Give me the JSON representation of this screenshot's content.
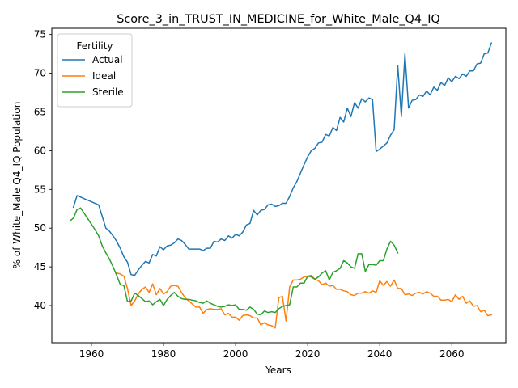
{
  "chart_data": {
    "type": "line",
    "title": "Score_3_in_TRUST_IN_MEDICINE_for_White_Male_Q4_IQ",
    "xlabel": "Years",
    "ylabel": "% of White_Male Q4_IQ Population",
    "xlim": [
      1949,
      2075
    ],
    "ylim": [
      35.2,
      75.8
    ],
    "xticks": [
      1960,
      1980,
      2000,
      2020,
      2040,
      2060
    ],
    "yticks": [
      40,
      45,
      50,
      55,
      60,
      65,
      70,
      75
    ],
    "grid": false,
    "legend": {
      "title": "Fertility",
      "placement": "top-left"
    },
    "series": [
      {
        "name": "Actual",
        "color": "#1f77b4",
        "points": [
          [
            1955,
            52.7
          ],
          [
            1956,
            54.2
          ],
          [
            1957,
            54.0
          ],
          [
            1958,
            53.8
          ],
          [
            1959,
            53.6
          ],
          [
            1960,
            53.4
          ],
          [
            1961,
            53.2
          ],
          [
            1962,
            53.0
          ],
          [
            1963,
            51.5
          ],
          [
            1964,
            50.0
          ],
          [
            1965,
            49.6
          ],
          [
            1966,
            49.0
          ],
          [
            1967,
            48.3
          ],
          [
            1968,
            47.4
          ],
          [
            1969,
            46.3
          ],
          [
            1970,
            45.6
          ],
          [
            1971,
            44.0
          ],
          [
            1972,
            43.9
          ],
          [
            1973,
            44.6
          ],
          [
            1974,
            45.2
          ],
          [
            1975,
            45.7
          ],
          [
            1976,
            45.5
          ],
          [
            1977,
            46.6
          ],
          [
            1978,
            46.4
          ],
          [
            1979,
            47.6
          ],
          [
            1980,
            47.2
          ],
          [
            1981,
            47.7
          ],
          [
            1982,
            47.8
          ],
          [
            1983,
            48.1
          ],
          [
            1984,
            48.6
          ],
          [
            1985,
            48.4
          ],
          [
            1986,
            47.9
          ],
          [
            1987,
            47.3
          ],
          [
            1988,
            47.3
          ],
          [
            1989,
            47.3
          ],
          [
            1990,
            47.3
          ],
          [
            1991,
            47.1
          ],
          [
            1992,
            47.4
          ],
          [
            1993,
            47.4
          ],
          [
            1994,
            48.3
          ],
          [
            1995,
            48.2
          ],
          [
            1996,
            48.6
          ],
          [
            1997,
            48.4
          ],
          [
            1998,
            49.0
          ],
          [
            1999,
            48.7
          ],
          [
            2000,
            49.2
          ],
          [
            2001,
            49.0
          ],
          [
            2002,
            49.5
          ],
          [
            2003,
            50.4
          ],
          [
            2004,
            50.6
          ],
          [
            2005,
            52.3
          ],
          [
            2006,
            51.7
          ],
          [
            2007,
            52.3
          ],
          [
            2008,
            52.4
          ],
          [
            2009,
            53.0
          ],
          [
            2010,
            53.1
          ],
          [
            2011,
            52.8
          ],
          [
            2012,
            52.9
          ],
          [
            2013,
            53.2
          ],
          [
            2014,
            53.2
          ],
          [
            2015,
            54.1
          ],
          [
            2016,
            55.2
          ],
          [
            2017,
            56.0
          ],
          [
            2018,
            57.1
          ],
          [
            2019,
            58.2
          ],
          [
            2020,
            59.2
          ],
          [
            2021,
            60.0
          ],
          [
            2022,
            60.3
          ],
          [
            2023,
            61.0
          ],
          [
            2024,
            61.1
          ],
          [
            2025,
            62.1
          ],
          [
            2026,
            61.9
          ],
          [
            2027,
            63.0
          ],
          [
            2028,
            62.6
          ],
          [
            2029,
            64.3
          ],
          [
            2030,
            63.7
          ],
          [
            2031,
            65.5
          ],
          [
            2032,
            64.4
          ],
          [
            2033,
            66.2
          ],
          [
            2034,
            65.5
          ],
          [
            2035,
            66.7
          ],
          [
            2036,
            66.3
          ],
          [
            2037,
            66.8
          ],
          [
            2038,
            66.6
          ],
          [
            2039,
            59.9
          ],
          [
            2040,
            60.2
          ],
          [
            2041,
            60.6
          ],
          [
            2042,
            61.0
          ],
          [
            2043,
            62.0
          ],
          [
            2044,
            62.7
          ],
          [
            2045,
            71.0
          ],
          [
            2046,
            64.4
          ],
          [
            2047,
            72.5
          ],
          [
            2048,
            65.5
          ],
          [
            2049,
            66.5
          ],
          [
            2050,
            66.6
          ],
          [
            2051,
            67.2
          ],
          [
            2052,
            67.0
          ],
          [
            2053,
            67.7
          ],
          [
            2054,
            67.2
          ],
          [
            2055,
            68.2
          ],
          [
            2056,
            67.8
          ],
          [
            2057,
            68.8
          ],
          [
            2058,
            68.4
          ],
          [
            2059,
            69.4
          ],
          [
            2060,
            68.9
          ],
          [
            2061,
            69.6
          ],
          [
            2062,
            69.3
          ],
          [
            2063,
            69.9
          ],
          [
            2064,
            69.6
          ],
          [
            2065,
            70.3
          ],
          [
            2066,
            70.3
          ],
          [
            2067,
            71.2
          ],
          [
            2068,
            71.3
          ],
          [
            2069,
            72.5
          ],
          [
            2070,
            72.6
          ],
          [
            2071,
            73.9
          ]
        ]
      },
      {
        "name": "Ideal",
        "color": "#ff7f0e",
        "points": [
          [
            1967,
            44.2
          ],
          [
            1968,
            44.1
          ],
          [
            1969,
            43.8
          ],
          [
            1970,
            42.2
          ],
          [
            1971,
            40.0
          ],
          [
            1972,
            40.6
          ],
          [
            1973,
            41.5
          ],
          [
            1974,
            42.1
          ],
          [
            1975,
            42.4
          ],
          [
            1976,
            41.7
          ],
          [
            1977,
            42.8
          ],
          [
            1978,
            41.4
          ],
          [
            1979,
            42.2
          ],
          [
            1980,
            41.5
          ],
          [
            1981,
            41.8
          ],
          [
            1982,
            42.5
          ],
          [
            1983,
            42.6
          ],
          [
            1984,
            42.5
          ],
          [
            1985,
            41.7
          ],
          [
            1986,
            41.0
          ],
          [
            1987,
            40.6
          ],
          [
            1988,
            40.2
          ],
          [
            1989,
            39.8
          ],
          [
            1990,
            39.8
          ],
          [
            1991,
            39.0
          ],
          [
            1992,
            39.5
          ],
          [
            1993,
            39.6
          ],
          [
            1994,
            39.5
          ],
          [
            1995,
            39.5
          ],
          [
            1996,
            39.6
          ],
          [
            1997,
            38.8
          ],
          [
            1998,
            39.0
          ],
          [
            1999,
            38.5
          ],
          [
            2000,
            38.5
          ],
          [
            2001,
            38.1
          ],
          [
            2002,
            38.7
          ],
          [
            2003,
            38.8
          ],
          [
            2004,
            38.7
          ],
          [
            2005,
            38.4
          ],
          [
            2006,
            38.4
          ],
          [
            2007,
            37.5
          ],
          [
            2008,
            37.8
          ],
          [
            2009,
            37.5
          ],
          [
            2010,
            37.4
          ],
          [
            2011,
            37.1
          ],
          [
            2012,
            41.0
          ],
          [
            2013,
            41.2
          ],
          [
            2014,
            38.0
          ],
          [
            2015,
            42.4
          ],
          [
            2016,
            43.3
          ],
          [
            2017,
            43.3
          ],
          [
            2018,
            43.4
          ],
          [
            2019,
            43.7
          ],
          [
            2020,
            43.8
          ],
          [
            2021,
            43.9
          ],
          [
            2022,
            43.4
          ],
          [
            2023,
            43.2
          ],
          [
            2024,
            42.7
          ],
          [
            2025,
            42.9
          ],
          [
            2026,
            42.5
          ],
          [
            2027,
            42.6
          ],
          [
            2028,
            42.1
          ],
          [
            2029,
            42.1
          ],
          [
            2030,
            41.9
          ],
          [
            2031,
            41.8
          ],
          [
            2032,
            41.4
          ],
          [
            2033,
            41.3
          ],
          [
            2034,
            41.6
          ],
          [
            2035,
            41.6
          ],
          [
            2036,
            41.8
          ],
          [
            2037,
            41.6
          ],
          [
            2038,
            41.9
          ],
          [
            2039,
            41.7
          ],
          [
            2040,
            43.2
          ],
          [
            2041,
            42.6
          ],
          [
            2042,
            43.1
          ],
          [
            2043,
            42.5
          ],
          [
            2044,
            43.3
          ],
          [
            2045,
            42.2
          ],
          [
            2046,
            42.2
          ],
          [
            2047,
            41.4
          ],
          [
            2048,
            41.5
          ],
          [
            2049,
            41.3
          ],
          [
            2050,
            41.6
          ],
          [
            2051,
            41.7
          ],
          [
            2052,
            41.5
          ],
          [
            2053,
            41.8
          ],
          [
            2054,
            41.6
          ],
          [
            2055,
            41.2
          ],
          [
            2056,
            41.2
          ],
          [
            2057,
            40.7
          ],
          [
            2058,
            40.7
          ],
          [
            2059,
            40.8
          ],
          [
            2060,
            40.5
          ],
          [
            2061,
            41.4
          ],
          [
            2062,
            40.8
          ],
          [
            2063,
            41.2
          ],
          [
            2064,
            40.3
          ],
          [
            2065,
            40.6
          ],
          [
            2066,
            39.9
          ],
          [
            2067,
            40.0
          ],
          [
            2068,
            39.2
          ],
          [
            2069,
            39.4
          ],
          [
            2070,
            38.7
          ],
          [
            2071,
            38.8
          ]
        ]
      },
      {
        "name": "Sterile",
        "color": "#2ca02c",
        "points": [
          [
            1954,
            50.9
          ],
          [
            1955,
            51.3
          ],
          [
            1956,
            52.4
          ],
          [
            1957,
            52.6
          ],
          [
            1958,
            51.9
          ],
          [
            1959,
            51.2
          ],
          [
            1960,
            50.5
          ],
          [
            1961,
            49.8
          ],
          [
            1962,
            49.0
          ],
          [
            1963,
            47.7
          ],
          [
            1964,
            46.8
          ],
          [
            1965,
            46.0
          ],
          [
            1966,
            45.0
          ],
          [
            1967,
            43.9
          ],
          [
            1968,
            42.7
          ],
          [
            1969,
            42.6
          ],
          [
            1970,
            40.5
          ],
          [
            1971,
            40.6
          ],
          [
            1972,
            41.6
          ],
          [
            1973,
            41.3
          ],
          [
            1974,
            40.9
          ],
          [
            1975,
            40.5
          ],
          [
            1976,
            40.6
          ],
          [
            1977,
            40.1
          ],
          [
            1978,
            40.5
          ],
          [
            1979,
            40.8
          ],
          [
            1980,
            40.0
          ],
          [
            1981,
            40.8
          ],
          [
            1982,
            41.3
          ],
          [
            1983,
            41.7
          ],
          [
            1984,
            41.2
          ],
          [
            1985,
            40.9
          ],
          [
            1986,
            40.8
          ],
          [
            1987,
            40.8
          ],
          [
            1988,
            40.7
          ],
          [
            1989,
            40.6
          ],
          [
            1990,
            40.4
          ],
          [
            1991,
            40.3
          ],
          [
            1992,
            40.6
          ],
          [
            1993,
            40.3
          ],
          [
            1994,
            40.1
          ],
          [
            1995,
            39.9
          ],
          [
            1996,
            39.8
          ],
          [
            1997,
            39.9
          ],
          [
            1998,
            40.1
          ],
          [
            1999,
            40.0
          ],
          [
            2000,
            40.1
          ],
          [
            2001,
            39.5
          ],
          [
            2002,
            39.5
          ],
          [
            2003,
            39.4
          ],
          [
            2004,
            39.8
          ],
          [
            2005,
            39.5
          ],
          [
            2006,
            38.9
          ],
          [
            2007,
            38.8
          ],
          [
            2008,
            39.3
          ],
          [
            2009,
            39.1
          ],
          [
            2010,
            39.2
          ],
          [
            2011,
            39.1
          ],
          [
            2012,
            39.6
          ],
          [
            2013,
            39.9
          ],
          [
            2014,
            40.0
          ],
          [
            2015,
            40.1
          ],
          [
            2016,
            42.4
          ],
          [
            2017,
            42.4
          ],
          [
            2018,
            42.9
          ],
          [
            2019,
            42.9
          ],
          [
            2020,
            43.8
          ],
          [
            2021,
            43.7
          ],
          [
            2022,
            43.4
          ],
          [
            2023,
            43.7
          ],
          [
            2024,
            44.2
          ],
          [
            2025,
            44.5
          ],
          [
            2026,
            43.3
          ],
          [
            2027,
            44.3
          ],
          [
            2028,
            44.5
          ],
          [
            2029,
            44.8
          ],
          [
            2030,
            45.8
          ],
          [
            2031,
            45.5
          ],
          [
            2032,
            45.0
          ],
          [
            2033,
            44.8
          ],
          [
            2034,
            46.7
          ],
          [
            2035,
            46.7
          ],
          [
            2036,
            44.4
          ],
          [
            2037,
            45.3
          ],
          [
            2038,
            45.3
          ],
          [
            2039,
            45.2
          ],
          [
            2040,
            45.8
          ],
          [
            2041,
            45.8
          ],
          [
            2042,
            47.3
          ],
          [
            2043,
            48.3
          ],
          [
            2044,
            47.8
          ],
          [
            2045,
            46.8
          ]
        ]
      }
    ]
  }
}
